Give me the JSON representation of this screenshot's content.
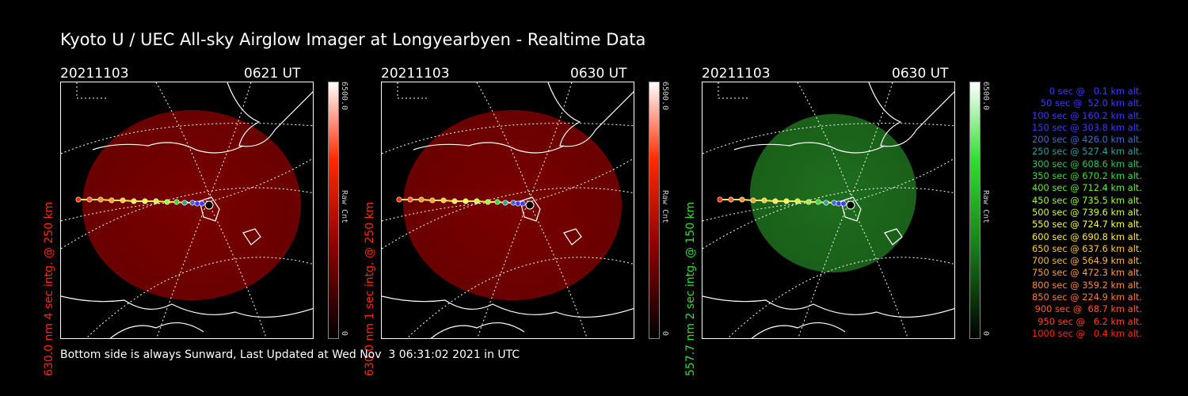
{
  "title": "Kyoto U / UEC All-sky Airglow Imager at Longyearbyen - Realtime Data",
  "panels": [
    {
      "date": "20211103",
      "time": "0621 UT",
      "side_label": "630.0 nm 4 sec intg. @ 250 km",
      "color": "#ff2a00",
      "glow": "#8a0000",
      "cbar_max": "6500.0",
      "cbar_min": "0",
      "cbar_unit": "Raw Cnt"
    },
    {
      "date": "20211103",
      "time": "0630 UT",
      "side_label": "630.0 nm 1 sec intg. @ 250 km",
      "color": "#ff2a00",
      "glow": "#8a0000",
      "cbar_max": "6500.0",
      "cbar_min": "0",
      "cbar_unit": "Raw Cnt"
    },
    {
      "date": "20211103",
      "time": "0630 UT",
      "side_label": "557.7 nm 2 sec intg. @ 150 km",
      "color": "#33dd33",
      "glow": "#1a7a1a",
      "cbar_max": "6500.0",
      "cbar_min": "0",
      "cbar_unit": "Raw Cnt"
    }
  ],
  "footer": "Bottom side is always Sunward, Last Updated at Wed Nov  3 06:31:02 2021 in UTC",
  "legend": [
    {
      "text": "0 sec @   0.1 km alt.",
      "color": "#3a3aff"
    },
    {
      "text": "50 sec @  52.0 km alt.",
      "color": "#3a3aff"
    },
    {
      "text": "100 sec @ 160.2 km alt.",
      "color": "#3a3aff"
    },
    {
      "text": "150 sec @ 303.8 km alt.",
      "color": "#3a3aff"
    },
    {
      "text": "200 sec @ 426.0 km alt.",
      "color": "#3f6ccf"
    },
    {
      "text": "250 sec @ 527.4 km alt.",
      "color": "#2aa0a0"
    },
    {
      "text": "300 sec @ 608.6 km alt.",
      "color": "#22cc55"
    },
    {
      "text": "350 sec @ 670.2 km alt.",
      "color": "#33dd33"
    },
    {
      "text": "400 sec @ 712.4 km alt.",
      "color": "#66ee33"
    },
    {
      "text": "450 sec @ 735.5 km alt.",
      "color": "#99ff33"
    },
    {
      "text": "500 sec @ 739.6 km alt.",
      "color": "#ccff33"
    },
    {
      "text": "550 sec @ 724.7 km alt.",
      "color": "#ffff33"
    },
    {
      "text": "600 sec @ 690.8 km alt.",
      "color": "#ffee33"
    },
    {
      "text": "650 sec @ 637.6 km alt.",
      "color": "#ffcc33"
    },
    {
      "text": "700 sec @ 564.9 km alt.",
      "color": "#ffb833"
    },
    {
      "text": "750 sec @ 472.3 km alt.",
      "color": "#ffa033"
    },
    {
      "text": "800 sec @ 359.2 km alt.",
      "color": "#ff8c33"
    },
    {
      "text": "850 sec @ 224.9 km alt.",
      "color": "#ff7a33"
    },
    {
      "text": "900 sec @  68.7 km alt.",
      "color": "#ff5a2a"
    },
    {
      "text": "950 sec @   6.2 km alt.",
      "color": "#ff4422"
    },
    {
      "text": "1000 sec @   0.4 km alt.",
      "color": "#ff2a00"
    }
  ]
}
